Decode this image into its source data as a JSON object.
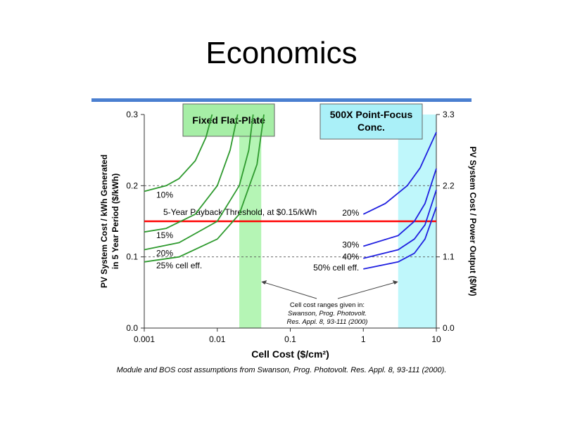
{
  "chart_data": {
    "type": "line",
    "title": "Economics",
    "y_label": [
      "PV System Cost / kWh Generated",
      "in 5 Year Period ($/kWh)"
    ],
    "y2_label": "PV System Cost / Power Output ($/W)",
    "x_label": "Cell Cost ($/cm²)",
    "caption": "Module and BOS cost assumptions from Swanson, Prog. Photovolt. Res. Appl. 8, 93-111 (2000).",
    "log_x": true,
    "xlim": [
      0.001,
      10
    ],
    "xticks": [
      0.001,
      0.01,
      0.1,
      1,
      10
    ],
    "ylim": [
      0,
      0.3
    ],
    "yticks": [
      {
        "value": 0,
        "label": "0.0"
      },
      0.1,
      0.2,
      0.3
    ],
    "y2lim": [
      0,
      3.3
    ],
    "y2ticks": [
      {
        "value": 0,
        "label": "0.0"
      },
      1.1,
      2.2,
      3.3
    ],
    "grid": true,
    "threshold": {
      "value": 0.15,
      "color": "#ff0000",
      "label": "5-Year Payback Threshold, at $0.15/kWh"
    },
    "bands": [
      {
        "name": "Fixed Flat-Plate",
        "x": [
          0.02,
          0.04
        ],
        "color": "#b5f5b5",
        "box_color": "#a6eea6"
      },
      {
        "name": "500X Point-Focus Conc.",
        "x": [
          3,
          10
        ],
        "color": "#bff7fb",
        "box_color": "#aaf0f8"
      }
    ],
    "note": [
      "Cell cost ranges given in:",
      "Swanson, Prog. Photovolt.",
      "Res. Appl. 8, 93-111 (2000)"
    ],
    "series": [
      {
        "name": "10%",
        "color": "#2e9a2e",
        "x": [
          0.001,
          0.002,
          0.003,
          0.005,
          0.007,
          0.0085
        ],
        "values": [
          0.192,
          0.2,
          0.21,
          0.235,
          0.268,
          0.3
        ]
      },
      {
        "name": "15%",
        "color": "#2e9a2e",
        "x": [
          0.001,
          0.002,
          0.005,
          0.01,
          0.015,
          0.019
        ],
        "values": [
          0.135,
          0.14,
          0.16,
          0.2,
          0.25,
          0.3
        ]
      },
      {
        "name": "20%",
        "color": "#2e9a2e",
        "x": [
          0.001,
          0.003,
          0.01,
          0.02,
          0.027,
          0.031
        ],
        "values": [
          0.11,
          0.12,
          0.15,
          0.2,
          0.25,
          0.3
        ]
      },
      {
        "name": "25% cell eff.",
        "color": "#2e9a2e",
        "x": [
          0.001,
          0.003,
          0.01,
          0.02,
          0.035,
          0.0435
        ],
        "values": [
          0.093,
          0.1,
          0.125,
          0.16,
          0.23,
          0.3
        ]
      },
      {
        "name": "20%",
        "color": "#2020e0",
        "x": [
          1,
          2,
          4,
          6,
          10
        ],
        "values": [
          0.16,
          0.175,
          0.2,
          0.225,
          0.275
        ]
      },
      {
        "name": "30%",
        "color": "#2020e0",
        "x": [
          1,
          3,
          5,
          7,
          10
        ],
        "values": [
          0.115,
          0.13,
          0.15,
          0.175,
          0.224
        ]
      },
      {
        "name": "40%",
        "color": "#2020e0",
        "x": [
          1,
          3,
          5,
          7,
          10
        ],
        "values": [
          0.098,
          0.11,
          0.125,
          0.145,
          0.194
        ]
      },
      {
        "name": "50% cell eff.",
        "color": "#2020e0",
        "x": [
          1,
          3,
          5,
          7,
          10
        ],
        "values": [
          0.083,
          0.093,
          0.105,
          0.125,
          0.17
        ]
      }
    ]
  }
}
